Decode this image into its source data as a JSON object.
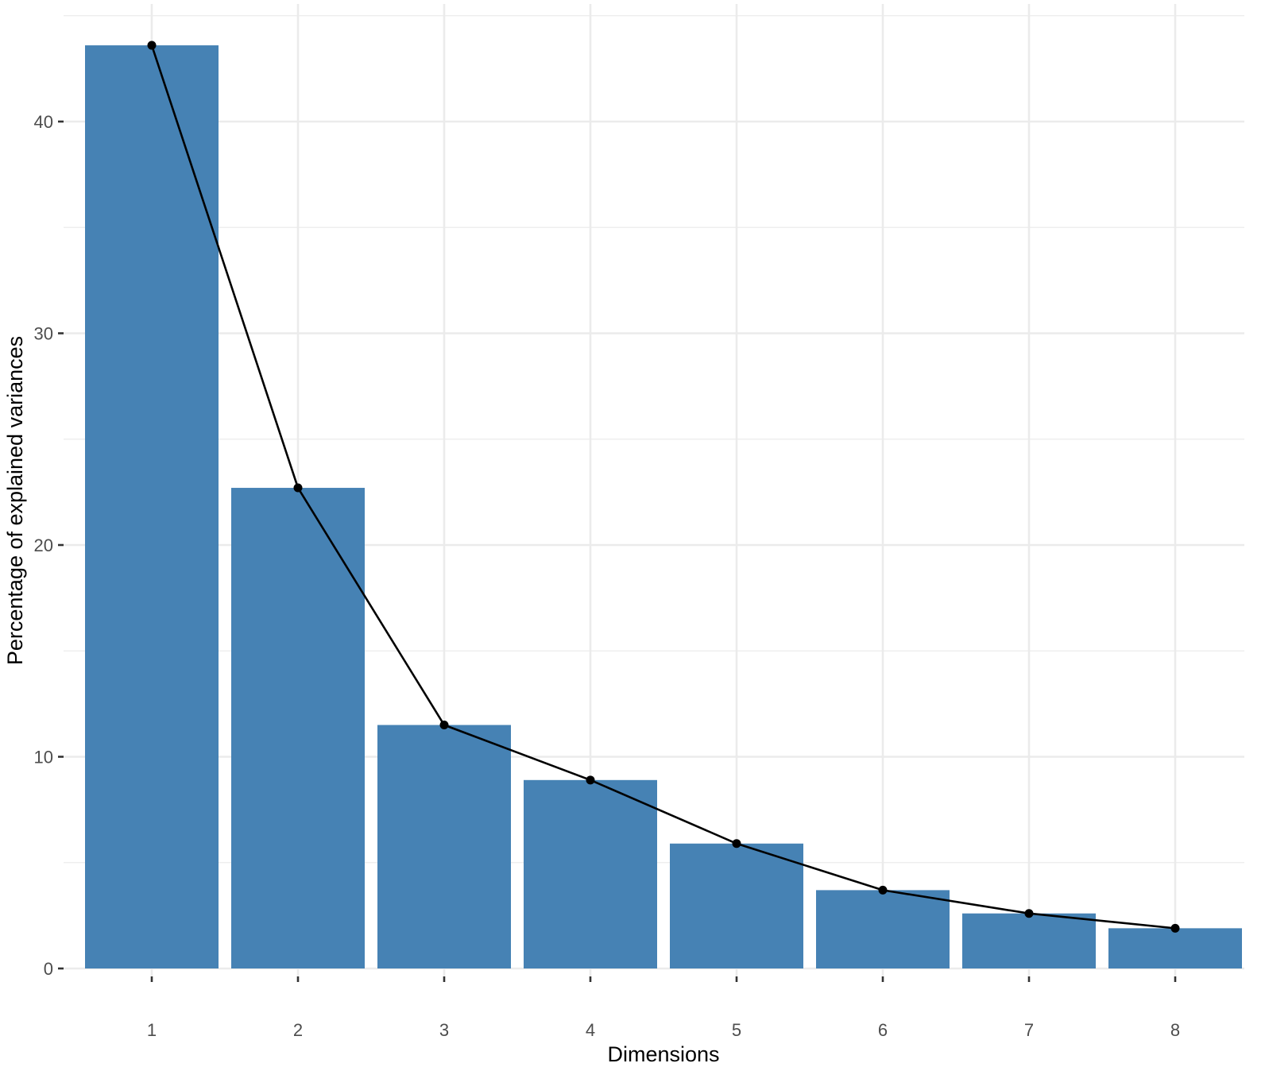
{
  "chart_data": {
    "type": "bar",
    "categories": [
      "1",
      "2",
      "3",
      "4",
      "5",
      "6",
      "7",
      "8"
    ],
    "values": [
      43.6,
      22.7,
      11.5,
      8.9,
      5.9,
      3.7,
      2.6,
      1.9
    ],
    "overlay": "line-with-points",
    "title": "",
    "xlabel": "Dimensions",
    "ylabel": "Percentage of explained variances",
    "ylim": [
      0,
      45.5
    ],
    "yticks": [
      "0",
      "10",
      "20",
      "30",
      "40"
    ],
    "ytick_values": [
      0,
      10,
      20,
      30,
      40
    ],
    "grid": true,
    "legend": "none",
    "colors": {
      "bar": "#4682B4",
      "line": "#000000",
      "grid": "#EBEBEB",
      "background": "#FFFFFF"
    }
  }
}
